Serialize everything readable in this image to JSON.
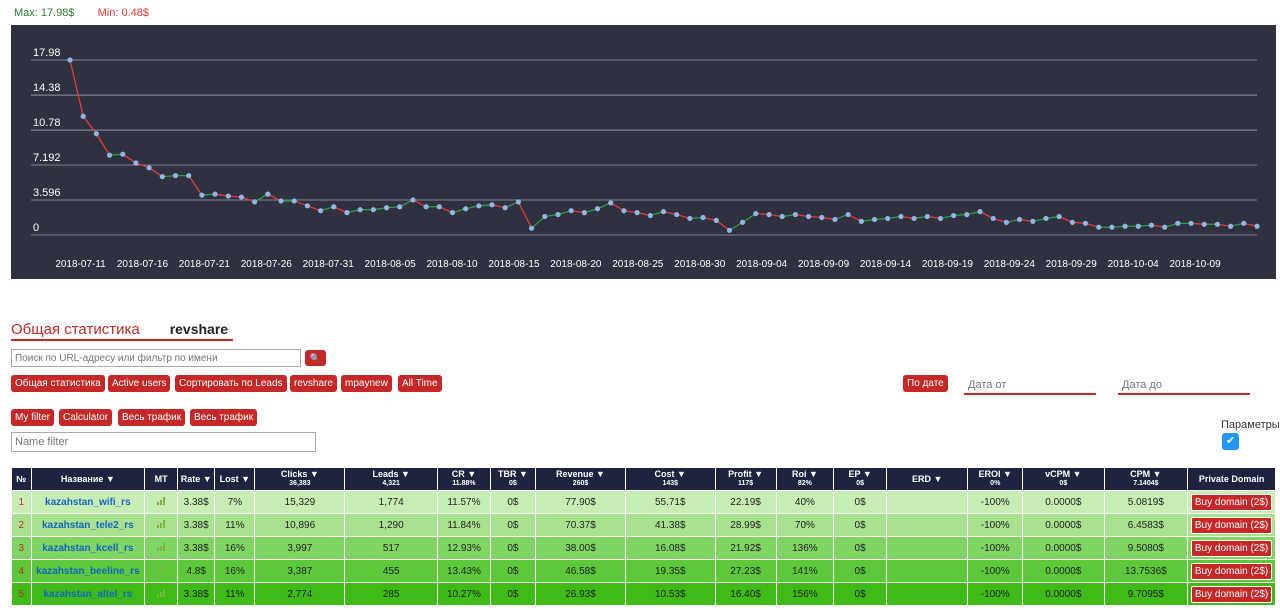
{
  "summary": {
    "max": "Max: 17.98$",
    "min": "Min: 0.48$"
  },
  "chart_data": {
    "type": "line",
    "ylim": [
      0,
      17.98
    ],
    "yticks": [
      "17.98",
      "14.38",
      "10.78",
      "7.192",
      "3.596",
      "0"
    ],
    "ytick_values": [
      17.98,
      14.38,
      10.78,
      7.192,
      3.596,
      0
    ],
    "xticks": [
      "2018-07-11",
      "2018-07-16",
      "2018-07-21",
      "2018-07-26",
      "2018-07-31",
      "2018-08-05",
      "2018-08-10",
      "2018-08-15",
      "2018-08-20",
      "2018-08-25",
      "2018-08-30",
      "2018-09-04",
      "2018-09-09",
      "2018-09-14",
      "2018-09-19",
      "2018-09-24",
      "2018-09-29",
      "2018-10-04",
      "2018-10-09"
    ],
    "x_start": "2018-07-07",
    "x_end": "2018-10-14",
    "values": [
      17.98,
      12.2,
      10.4,
      8.2,
      8.3,
      7.4,
      6.9,
      6.0,
      6.1,
      6.1,
      4.1,
      4.2,
      4.0,
      3.9,
      3.4,
      4.2,
      3.5,
      3.5,
      3.0,
      2.5,
      2.9,
      2.3,
      2.6,
      2.6,
      2.8,
      2.9,
      3.6,
      2.9,
      2.9,
      2.3,
      2.7,
      3.0,
      3.1,
      2.8,
      3.4,
      0.7,
      1.9,
      2.1,
      2.5,
      2.3,
      2.7,
      3.3,
      2.5,
      2.3,
      2.0,
      2.4,
      2.1,
      1.7,
      1.8,
      1.5,
      0.48,
      1.3,
      2.2,
      2.1,
      1.9,
      2.1,
      1.9,
      1.8,
      1.6,
      2.1,
      1.4,
      1.6,
      1.7,
      1.9,
      1.7,
      1.9,
      1.7,
      2.0,
      2.1,
      2.4,
      1.7,
      1.3,
      1.6,
      1.4,
      1.7,
      1.9,
      1.3,
      1.2,
      0.8,
      0.8,
      0.9,
      0.9,
      1.0,
      0.8,
      1.2,
      1.2,
      1.1,
      1.1,
      0.9,
      1.2,
      0.9
    ],
    "colors": {
      "background": "#2f3040",
      "up": "#2e9e3e",
      "down": "#e53935",
      "point": "#8fb6e8",
      "grid": "#ffffff"
    }
  },
  "section": {
    "title": "Общая статистика",
    "subtitle": "revshare"
  },
  "search": {
    "placeholder": "Поиск по URL-адресу или фильтр по имени"
  },
  "filters": {
    "row1": [
      "Общая статистика",
      "Active users",
      "Сортировать по Leads",
      "revshare",
      "mpaynew",
      "All Time"
    ],
    "row2": [
      "My filter",
      "Calculator",
      "Весь трафик",
      "Весь трафик"
    ],
    "by_date": "По дате",
    "date_from": "Дата от",
    "date_to": "Дата до",
    "name_filter": "Name filter",
    "params_label": "Параметры"
  },
  "table": {
    "headers": [
      {
        "label": "№",
        "total": ""
      },
      {
        "label": "Название ▼",
        "total": ""
      },
      {
        "label": "MT",
        "total": ""
      },
      {
        "label": "Rate ▼",
        "total": ""
      },
      {
        "label": "Lost ▼",
        "total": ""
      },
      {
        "label": "Clicks ▼",
        "total": "36,383"
      },
      {
        "label": "Leads ▼",
        "total": "4,321"
      },
      {
        "label": "CR ▼",
        "total": "11.88%"
      },
      {
        "label": "TBR ▼",
        "total": "0$"
      },
      {
        "label": "Revenue ▼",
        "total": "260$"
      },
      {
        "label": "Cost ▼",
        "total": "143$"
      },
      {
        "label": "Profit ▼",
        "total": "117$"
      },
      {
        "label": "Roi ▼",
        "total": "82%"
      },
      {
        "label": "EP ▼",
        "total": "0$"
      },
      {
        "label": "ERD ▼",
        "total": ""
      },
      {
        "label": "EROI ▼",
        "total": "0%"
      },
      {
        "label": "vCPM ▼",
        "total": "0$"
      },
      {
        "label": "CPM ▼",
        "total": "7.1404$"
      },
      {
        "label": "Private Domain",
        "total": ""
      }
    ],
    "rows": [
      {
        "num": "1",
        "name": "kazahstan_wifi_rs",
        "rate": "3.38$",
        "lost": "7%",
        "clicks": "15,329",
        "leads": "1,774",
        "cr": "11.57%",
        "tbr": "0$",
        "revenue": "77.90$",
        "cost": "55.71$",
        "profit": "22.19$",
        "roi": "40%",
        "ep": "0$",
        "erd": "",
        "eroi": "-100%",
        "vcpm": "0.0000$",
        "cpm": "5.0819$",
        "buy": "Buy domain (2$)",
        "bg": "#c8edb4"
      },
      {
        "num": "2",
        "name": "kazahstan_tele2_rs",
        "rate": "3.38$",
        "lost": "11%",
        "clicks": "10,896",
        "leads": "1,290",
        "cr": "11.84%",
        "tbr": "0$",
        "revenue": "70.37$",
        "cost": "41.38$",
        "profit": "28.99$",
        "roi": "70%",
        "ep": "0$",
        "erd": "",
        "eroi": "-100%",
        "vcpm": "0.0000$",
        "cpm": "6.4583$",
        "buy": "Buy domain (2$)",
        "bg": "#a8e28e"
      },
      {
        "num": "3",
        "name": "kazahstan_kcell_rs",
        "rate": "3.38$",
        "lost": "16%",
        "clicks": "3,997",
        "leads": "517",
        "cr": "12.93%",
        "tbr": "0$",
        "revenue": "38.00$",
        "cost": "16.08$",
        "profit": "21.92$",
        "roi": "136%",
        "ep": "0$",
        "erd": "",
        "eroi": "-100%",
        "vcpm": "0.0000$",
        "cpm": "9.5080$",
        "buy": "Buy domain (2$)",
        "bg": "#7fd562"
      },
      {
        "num": "4",
        "name": "kazahstan_beeline_rs",
        "rate": "4.8$",
        "lost": "16%",
        "clicks": "3,387",
        "leads": "455",
        "cr": "13.43%",
        "tbr": "0$",
        "revenue": "46.58$",
        "cost": "19.35$",
        "profit": "27.23$",
        "roi": "141%",
        "ep": "0$",
        "erd": "",
        "eroi": "-100%",
        "vcpm": "0.0000$",
        "cpm": "13.7536$",
        "buy": "Buy domain (2$)",
        "bg": "#5cc83a"
      },
      {
        "num": "5",
        "name": "kazahstan_altel_rs",
        "rate": "3.38$",
        "lost": "11%",
        "clicks": "2,774",
        "leads": "285",
        "cr": "10.27%",
        "tbr": "0$",
        "revenue": "26.93$",
        "cost": "10.53$",
        "profit": "16.40$",
        "roi": "156%",
        "ep": "0$",
        "erd": "",
        "eroi": "-100%",
        "vcpm": "0.0000$",
        "cpm": "9.7095$",
        "buy": "Buy domain (2$)",
        "bg": "#3fbb17"
      }
    ]
  }
}
